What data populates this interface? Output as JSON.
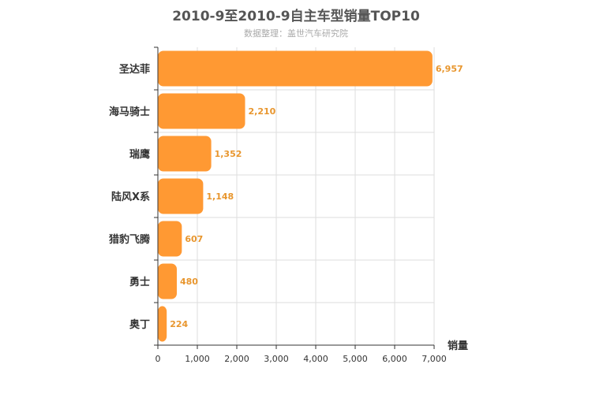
{
  "chart_data": {
    "type": "bar",
    "orientation": "horizontal",
    "title": "2010-9至2010-9自主车型销量TOP10",
    "subtitle": "数据整理：盖世汽车研究院",
    "categories": [
      "圣达菲",
      "海马骑士",
      "瑞鹰",
      "陆风X系",
      "猎豹飞腾",
      "勇士",
      "奥丁"
    ],
    "values": [
      6957,
      2210,
      1352,
      1148,
      607,
      480,
      224
    ],
    "data_labels": [
      "6,957",
      "2,210",
      "1,352",
      "1,148",
      "607",
      "480",
      "224"
    ],
    "xlabel": "销量",
    "ylabel": "",
    "xlim": [
      0,
      7000
    ],
    "xticks": [
      0,
      1000,
      2000,
      3000,
      4000,
      5000,
      6000,
      7000
    ],
    "xtick_labels": [
      "0",
      "1,000",
      "2,000",
      "3,000",
      "4,000",
      "5,000",
      "6,000",
      "7,000"
    ],
    "grid": true,
    "colors": {
      "bar": "#ff9933",
      "label": "#e8962e",
      "grid": "#dddddd",
      "axis": "#333333",
      "title": "#555555",
      "subtitle": "#aaaaaa",
      "category": "#333333"
    }
  }
}
